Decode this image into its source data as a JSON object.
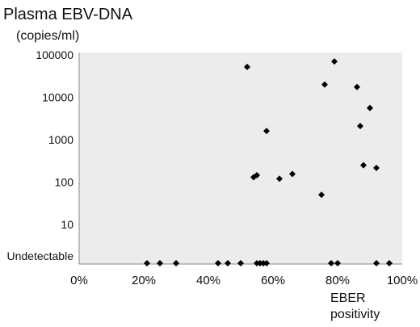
{
  "chart_data": {
    "type": "scatter",
    "title": "Plasma EBV-DNA",
    "ylabel": "(copies/ml)",
    "xlabel_line1": "EBER",
    "xlabel_line2": "positivity",
    "y_scale": "log",
    "y_special_category": "Undetectable",
    "yticks": [
      "100000",
      "10000",
      "1000",
      "100",
      "10",
      "Undetectable"
    ],
    "ytick_values": [
      100000,
      10000,
      1000,
      100,
      10
    ],
    "xticks": [
      "0%",
      "20%",
      "40%",
      "60%",
      "80%",
      "100%"
    ],
    "xlim": [
      0,
      100
    ],
    "ylim": [
      1,
      100000
    ],
    "grid": false,
    "plot_background": "#ececec",
    "marker_color": "#000000",
    "marker_shape": "diamond",
    "points": [
      {
        "x": 52,
        "y": 52000
      },
      {
        "x": 54,
        "y": 130
      },
      {
        "x": 55,
        "y": 145
      },
      {
        "x": 58,
        "y": 1600
      },
      {
        "x": 62,
        "y": 120
      },
      {
        "x": 66,
        "y": 155
      },
      {
        "x": 75,
        "y": 50
      },
      {
        "x": 76,
        "y": 20000
      },
      {
        "x": 79,
        "y": 70000
      },
      {
        "x": 86,
        "y": 17500
      },
      {
        "x": 87,
        "y": 2100
      },
      {
        "x": 88,
        "y": 250
      },
      {
        "x": 90,
        "y": 5600
      },
      {
        "x": 92,
        "y": 215
      },
      {
        "x": 21,
        "y": "Undetectable"
      },
      {
        "x": 25,
        "y": "Undetectable"
      },
      {
        "x": 30,
        "y": "Undetectable"
      },
      {
        "x": 43,
        "y": "Undetectable"
      },
      {
        "x": 46,
        "y": "Undetectable"
      },
      {
        "x": 50,
        "y": "Undetectable"
      },
      {
        "x": 55,
        "y": "Undetectable"
      },
      {
        "x": 56,
        "y": "Undetectable"
      },
      {
        "x": 57,
        "y": "Undetectable"
      },
      {
        "x": 58,
        "y": "Undetectable"
      },
      {
        "x": 78,
        "y": "Undetectable"
      },
      {
        "x": 80,
        "y": "Undetectable"
      },
      {
        "x": 92,
        "y": "Undetectable"
      },
      {
        "x": 96,
        "y": "Undetectable"
      }
    ]
  }
}
